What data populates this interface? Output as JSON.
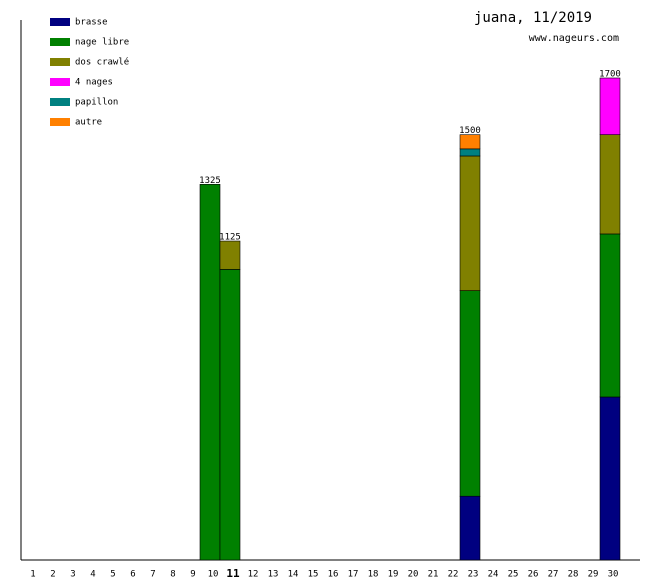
{
  "chart_data": {
    "type": "stacked-bar",
    "title": "juana, 11/2019",
    "subtitle": "www.nageurs.com",
    "categories": [
      "1",
      "2",
      "3",
      "4",
      "5",
      "6",
      "7",
      "8",
      "9",
      "10",
      "11",
      "12",
      "13",
      "14",
      "15",
      "16",
      "17",
      "18",
      "19",
      "20",
      "21",
      "22",
      "23",
      "24",
      "25",
      "26",
      "27",
      "28",
      "29",
      "30"
    ],
    "highlight_index": 10,
    "series": [
      {
        "name": "brasse",
        "color": "#000080",
        "values": [
          null,
          null,
          null,
          null,
          null,
          null,
          null,
          null,
          null,
          null,
          null,
          null,
          null,
          null,
          null,
          null,
          null,
          null,
          null,
          null,
          null,
          null,
          225,
          null,
          null,
          null,
          null,
          null,
          null,
          575
        ]
      },
      {
        "name": "nage libre",
        "color": "#008000",
        "values": [
          null,
          null,
          null,
          null,
          null,
          null,
          null,
          null,
          null,
          1325,
          1025,
          null,
          null,
          null,
          null,
          null,
          null,
          null,
          null,
          null,
          null,
          null,
          725,
          null,
          null,
          null,
          null,
          null,
          null,
          575
        ]
      },
      {
        "name": "dos crawlé",
        "color": "#808000",
        "values": [
          null,
          null,
          null,
          null,
          null,
          null,
          null,
          null,
          null,
          null,
          100,
          null,
          null,
          null,
          null,
          null,
          null,
          null,
          null,
          null,
          null,
          null,
          475,
          null,
          null,
          null,
          null,
          null,
          null,
          350
        ]
      },
      {
        "name": "4 nages",
        "color": "#ff00ff",
        "values": [
          null,
          null,
          null,
          null,
          null,
          null,
          null,
          null,
          null,
          null,
          null,
          null,
          null,
          null,
          null,
          null,
          null,
          null,
          null,
          null,
          null,
          null,
          null,
          null,
          null,
          null,
          null,
          null,
          null,
          200
        ]
      },
      {
        "name": "papillon",
        "color": "#008080",
        "values": [
          null,
          null,
          null,
          null,
          null,
          null,
          null,
          null,
          null,
          null,
          null,
          null,
          null,
          null,
          null,
          null,
          null,
          null,
          null,
          null,
          null,
          null,
          25,
          null,
          null,
          null,
          null,
          null,
          null,
          null
        ]
      },
      {
        "name": "autre",
        "color": "#ff8000",
        "values": [
          null,
          null,
          null,
          null,
          null,
          null,
          null,
          null,
          null,
          null,
          null,
          null,
          null,
          null,
          null,
          null,
          null,
          null,
          null,
          null,
          null,
          null,
          50,
          null,
          null,
          null,
          null,
          null,
          null,
          null
        ]
      }
    ],
    "totals": [
      null,
      null,
      null,
      null,
      null,
      null,
      null,
      null,
      null,
      1325,
      1125,
      null,
      null,
      null,
      null,
      null,
      null,
      null,
      null,
      null,
      null,
      null,
      1500,
      null,
      null,
      null,
      null,
      null,
      null,
      1700
    ]
  }
}
